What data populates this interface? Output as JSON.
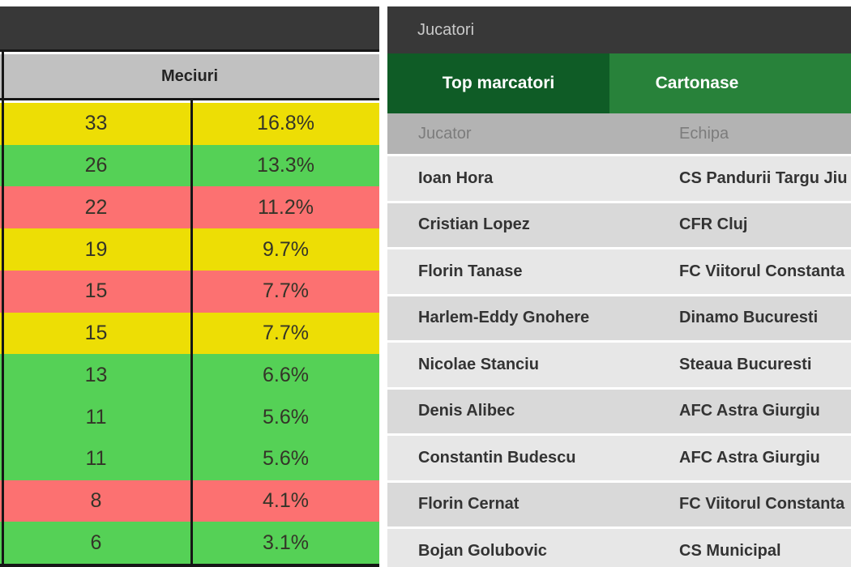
{
  "left_panel": {
    "title": "Meciuri",
    "row_colors": {
      "yellow": "#EDDE05",
      "green": "#55D156",
      "red": "#FC7171"
    },
    "rows": [
      {
        "count": "33",
        "percent": "16.8%",
        "color": "yellow"
      },
      {
        "count": "26",
        "percent": "13.3%",
        "color": "green"
      },
      {
        "count": "22",
        "percent": "11.2%",
        "color": "red"
      },
      {
        "count": "19",
        "percent": "9.7%",
        "color": "yellow"
      },
      {
        "count": "15",
        "percent": "7.7%",
        "color": "red"
      },
      {
        "count": "15",
        "percent": "7.7%",
        "color": "yellow"
      },
      {
        "count": "13",
        "percent": "6.6%",
        "color": "green"
      },
      {
        "count": "11",
        "percent": "5.6%",
        "color": "green"
      },
      {
        "count": "11",
        "percent": "5.6%",
        "color": "green"
      },
      {
        "count": "8",
        "percent": "4.1%",
        "color": "red"
      },
      {
        "count": "6",
        "percent": "3.1%",
        "color": "green"
      }
    ]
  },
  "right_panel": {
    "title": "Jucatori",
    "tabs": [
      {
        "label": "Top marcatori",
        "active": true
      },
      {
        "label": "Cartonase",
        "active": false
      }
    ],
    "table": {
      "headers": {
        "player": "Jucator",
        "team": "Echipa"
      },
      "rows": [
        {
          "player": "Ioan Hora",
          "team": "CS Pandurii Targu Jiu"
        },
        {
          "player": "Cristian Lopez",
          "team": "CFR Cluj"
        },
        {
          "player": "Florin Tanase",
          "team": "FC Viitorul Constanta"
        },
        {
          "player": "Harlem-Eddy Gnohere",
          "team": "Dinamo Bucuresti"
        },
        {
          "player": "Nicolae Stanciu",
          "team": "Steaua Bucuresti"
        },
        {
          "player": "Denis Alibec",
          "team": "AFC Astra Giurgiu"
        },
        {
          "player": "Constantin Budescu",
          "team": "AFC Astra Giurgiu"
        },
        {
          "player": "Florin Cernat",
          "team": "FC Viitorul Constanta"
        },
        {
          "player": "Bojan Golubovic",
          "team": "CS Municipal"
        }
      ]
    }
  },
  "colors": {
    "topbar": "#383838",
    "tab_active_green": "#0F5C26",
    "tab_green": "#28823A",
    "header_gray_left": "#C1C1C1",
    "header_gray_right": "#B3B3B3",
    "row_light": "#E7E7E7",
    "row_dark": "#D9D9D9",
    "table_border": "#161616"
  }
}
